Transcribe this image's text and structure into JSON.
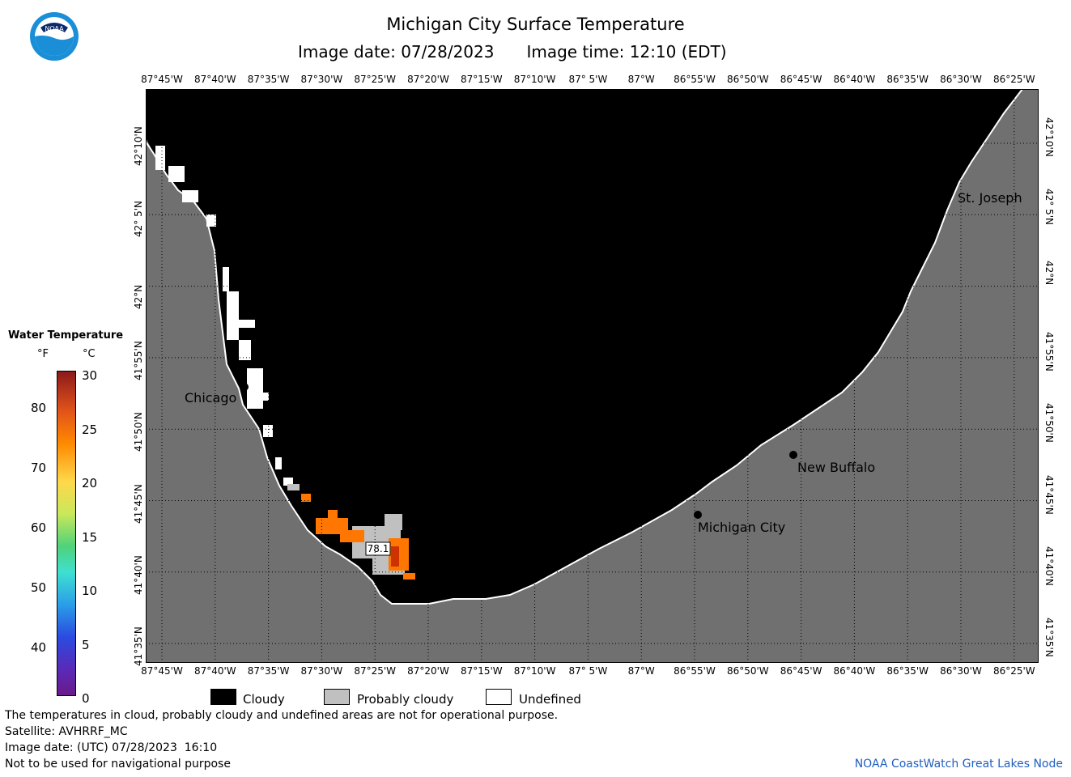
{
  "header": {
    "title": "Michigan City Surface Temperature",
    "image_date": "Image date: 07/28/2023",
    "image_time": "Image time: 12:10 (EDT)"
  },
  "logo": {
    "text": "NOAA",
    "icon": "noaa-logo-icon"
  },
  "map": {
    "lon_ticks": [
      "87°45'W",
      "87°40'W",
      "87°35'W",
      "87°30'W",
      "87°25'W",
      "87°20'W",
      "87°15'W",
      "87°10'W",
      "87° 5'W",
      "87°W",
      "86°55'W",
      "86°50'W",
      "86°45'W",
      "86°40'W",
      "86°35'W",
      "86°30'W",
      "86°25'W"
    ],
    "lat_ticks": [
      "42°10'N",
      "42° 5'N",
      "42°N",
      "41°55'N",
      "41°50'N",
      "41°45'N",
      "41°40'N",
      "41°35'N"
    ],
    "places": [
      {
        "name": "Chicago"
      },
      {
        "name": "St. Joseph"
      },
      {
        "name": "New Buffalo"
      },
      {
        "name": "Michigan City"
      }
    ],
    "sample_value": "78.1",
    "colors": {
      "land": "#707070",
      "cloud": "#000000",
      "probably_cloudy": "#c0c0c0",
      "undefined": "#ffffff",
      "warm": "#ff7700",
      "hot": "#cc3300"
    }
  },
  "legend": {
    "title": "Water Temperature",
    "unit_f": "°F",
    "unit_c": "°C",
    "f_labels": [
      "80",
      "70",
      "60",
      "50",
      "40"
    ],
    "c_labels": [
      "30",
      "25",
      "20",
      "15",
      "10",
      "5",
      "0"
    ]
  },
  "key": {
    "cloudy": "Cloudy",
    "probably_cloudy": "Probably cloudy",
    "undefined": "Undefined"
  },
  "notes": [
    "The temperatures in cloud, probably cloudy and undefined areas are not for operational purpose.",
    "Satellite: AVHRRF_MC",
    "Image date: (UTC) 07/28/2023  16:10",
    "Not to be used for navigational purpose"
  ],
  "credit": "NOAA CoastWatch Great Lakes Node"
}
